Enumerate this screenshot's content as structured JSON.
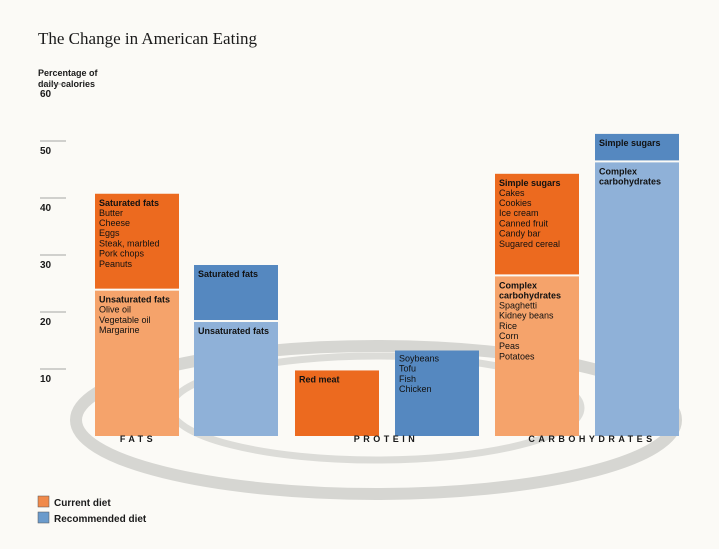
{
  "chart_data": {
    "type": "bar",
    "title": "The Change in American Eating",
    "ylabel": [
      "Percentage of",
      "daily calories"
    ],
    "ylim": [
      0,
      60
    ],
    "yticks": [
      10,
      20,
      30,
      40,
      50,
      60
    ],
    "groups": [
      {
        "name": "FATS",
        "bars": [
          {
            "series": "Current diet",
            "segments": [
              {
                "name": "Unsaturated fats",
                "from": 0,
                "to": 25.5,
                "items": [
                  "Olive oil",
                  "Vegetable oil",
                  "Margarine"
                ]
              },
              {
                "name": "Saturated fats",
                "from": 25.5,
                "to": 42.5,
                "items": [
                  "Butter",
                  "Cheese",
                  "Eggs",
                  "Steak, marbled",
                  "Pork chops",
                  "Peanuts"
                ]
              }
            ]
          },
          {
            "series": "Recommended diet",
            "segments": [
              {
                "name": "Unsaturated fats",
                "from": 0,
                "to": 20,
                "items": []
              },
              {
                "name": "Saturated fats",
                "from": 20,
                "to": 30,
                "items": []
              }
            ]
          }
        ]
      },
      {
        "name": "PROTEIN",
        "bars": [
          {
            "series": "Current diet",
            "segments": [
              {
                "name": "Red meat",
                "from": 0,
                "to": 11.5,
                "items": []
              }
            ]
          },
          {
            "series": "Recommended diet",
            "segments": [
              {
                "name": "",
                "from": 0,
                "to": 15,
                "items": [
                  "Soybeans",
                  "Tofu",
                  "Fish",
                  "Chicken"
                ]
              }
            ]
          }
        ]
      },
      {
        "name": "CARBOHYDRATES",
        "bars": [
          {
            "series": "Current diet",
            "segments": [
              {
                "name": "Complex carbohydrates",
                "from": 0,
                "to": 28,
                "items": [
                  "Spaghetti",
                  "Kidney beans",
                  "Rice",
                  "Corn",
                  "Peas",
                  "Potatoes"
                ]
              },
              {
                "name": "Simple sugars",
                "from": 28,
                "to": 46,
                "items": [
                  "Cakes",
                  "Cookies",
                  "Ice cream",
                  "Canned fruit",
                  "Candy bar",
                  "Sugared cereal"
                ]
              }
            ]
          },
          {
            "series": "Recommended diet",
            "segments": [
              {
                "name": "Complex carbohydrates",
                "from": 0,
                "to": 48,
                "items": []
              },
              {
                "name": "Simple sugars",
                "from": 48,
                "to": 53,
                "items": []
              }
            ]
          }
        ]
      }
    ],
    "legend": {
      "position": "bottom-left",
      "entries": [
        {
          "name": "Current diet",
          "color": "#f08a4b"
        },
        {
          "name": "Recommended diet",
          "color": "#6b9bcc"
        }
      ]
    },
    "colors": {
      "current_base": "#f5a36b",
      "current_top": "#ec6a1f",
      "recommended_base": "#8fb1d8",
      "recommended_top": "#5588c0"
    }
  }
}
